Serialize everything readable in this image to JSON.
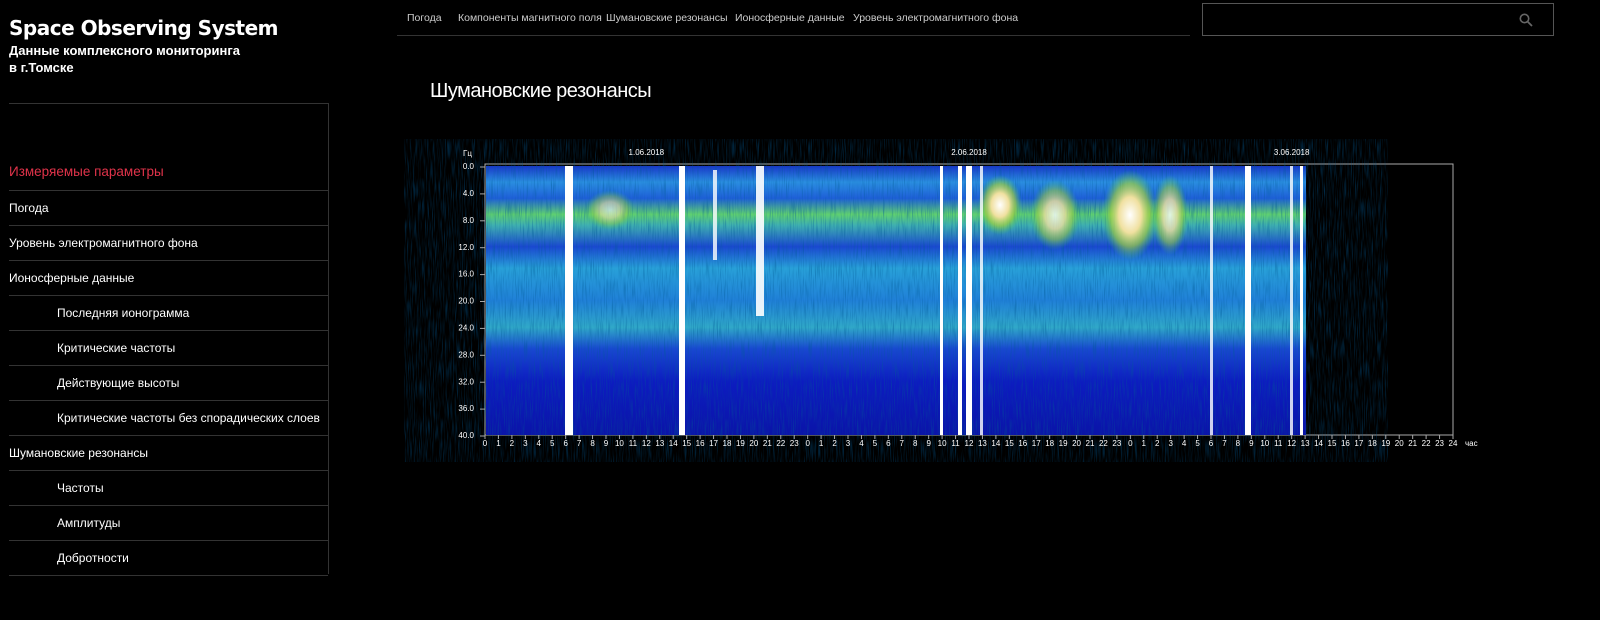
{
  "header": {
    "title": "Space Observing System",
    "subtitle_lines": [
      "Данные комплексного мониторинга",
      "в г.Томске"
    ]
  },
  "nav": [
    "Погода",
    "Компоненты магнитного поля",
    "Шумановские резонансы",
    "Ионосферные данные",
    "Уровень электромагнитного фона"
  ],
  "sidebar": {
    "heading": "Измеряемые параметры",
    "items": [
      {
        "label": "Погода"
      },
      {
        "label": "Уровень электромагнитного фона"
      },
      {
        "label": "Ионосферные данные",
        "children": [
          "Последняя ионограмма",
          "Критические частоты",
          "Действующие высоты",
          "Критические частоты без спорадических слоев"
        ]
      },
      {
        "label": "Шумановские резонансы",
        "children": [
          "Частоты",
          "Амплитуды",
          "Добротности"
        ]
      }
    ]
  },
  "page_title": "Шумановские резонансы",
  "spectrogram": {
    "y_unit": "Гц",
    "x_unit": "час",
    "yticks": [
      {
        "value": 0,
        "label": "0.0"
      },
      {
        "value": 4,
        "label": "4.0"
      },
      {
        "value": 8,
        "label": "8.0"
      },
      {
        "value": 12,
        "label": "12.0"
      },
      {
        "value": 16,
        "label": "16.0"
      },
      {
        "value": 20,
        "label": "20.0"
      },
      {
        "value": 24,
        "label": "24.0"
      },
      {
        "value": 28,
        "label": "28.0"
      },
      {
        "value": 32,
        "label": "32.0"
      },
      {
        "value": 36,
        "label": "36.0"
      },
      {
        "value": 40,
        "label": "40.0"
      }
    ],
    "ylim": [
      0,
      40
    ],
    "days": [
      {
        "date": "1.06.2018",
        "hours": [
          0,
          1,
          2,
          3,
          4,
          5,
          6,
          7,
          8,
          9,
          10,
          11,
          12,
          13,
          14,
          15,
          16,
          17,
          18,
          19,
          20,
          21,
          22,
          23
        ]
      },
      {
        "date": "2.06.2018",
        "hours": [
          0,
          1,
          2,
          3,
          4,
          5,
          6,
          7,
          8,
          9,
          10,
          11,
          12,
          13,
          14,
          15,
          16,
          17,
          18,
          19,
          20,
          21,
          22,
          23
        ]
      },
      {
        "date": "3.06.2018",
        "hours": [
          0,
          1,
          2,
          3,
          4,
          5,
          6,
          7,
          8,
          9,
          10,
          11,
          12,
          13,
          14,
          15,
          16,
          17,
          18,
          19,
          20,
          21,
          22,
          23,
          24
        ]
      }
    ]
  }
}
